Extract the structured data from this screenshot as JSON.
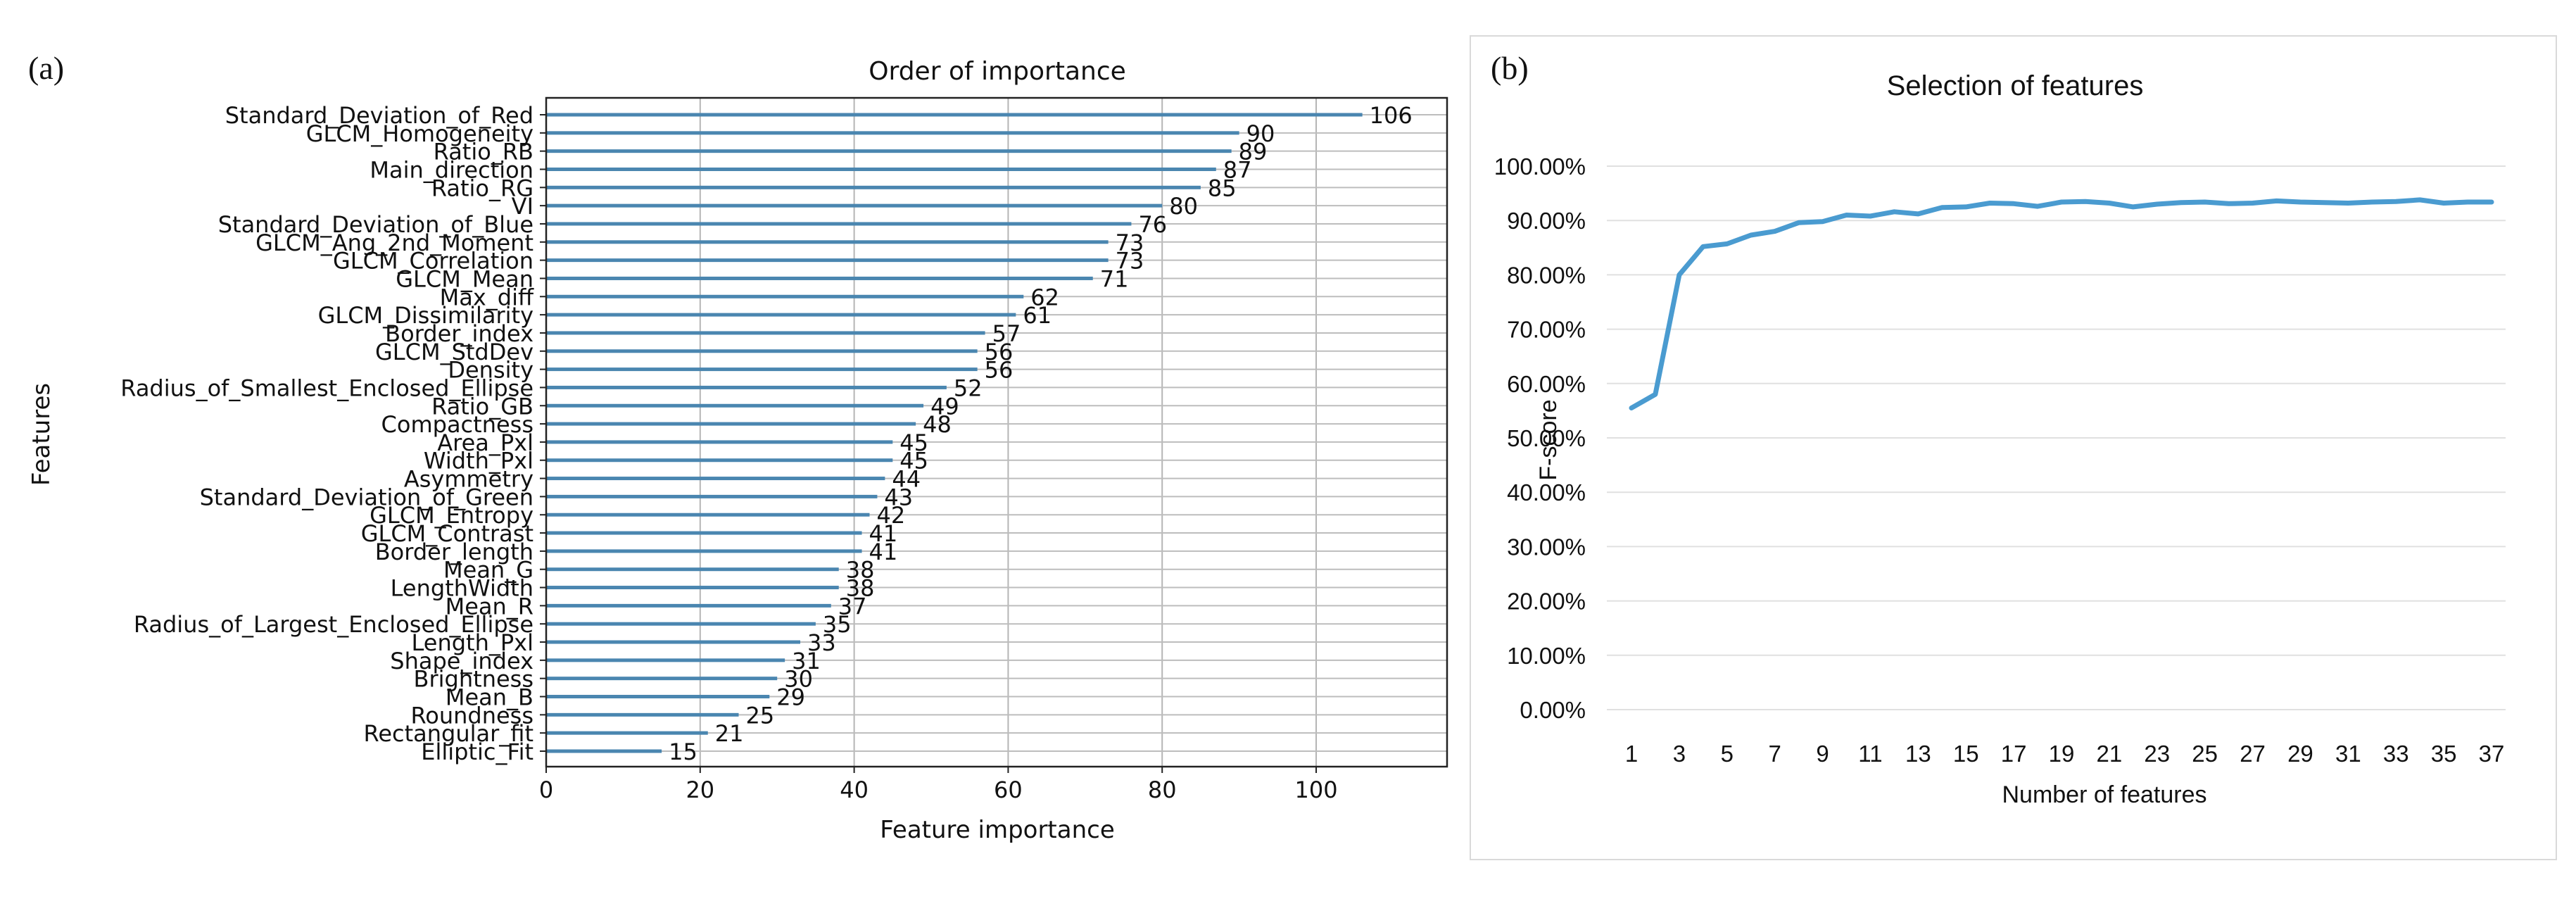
{
  "panels": {
    "a_label": "(a)",
    "b_label": "(b)"
  },
  "chart_data": [
    {
      "type": "bar",
      "orientation": "horizontal",
      "title": "Order of importance",
      "xlabel": "Feature importance",
      "ylabel": "Features",
      "xlim": [
        0,
        117
      ],
      "xticks": [
        0,
        20,
        40,
        60,
        80,
        100
      ],
      "grid": true,
      "bar_color": "#4a86b0",
      "categories": [
        "Standard_Deviation_of_Red",
        "GLCM_Homogeneity",
        "Ratio_RB",
        "Main_direction",
        "Ratio_RG",
        "VI",
        "Standard_Deviation_of_Blue",
        "GLCM_Ang_2nd_Moment",
        "GLCM_Correlation",
        "GLCM_Mean",
        "Max_diff",
        "GLCM_Dissimilarity",
        "Border_index",
        "GLCM_StdDev",
        "Density",
        "Radius_of_Smallest_Enclosed_Ellipse",
        "Ratio_GB",
        "Compactness",
        "Area_Pxl",
        "Width_Pxl",
        "Asymmetry",
        "Standard_Deviation_of_Green",
        "GLCM_Entropy",
        "GLCM_Contrast",
        "Border_length",
        "Mean_G",
        "LengthWidth",
        "Mean_R",
        "Radius_of_Largest_Enclosed_Ellipse",
        "Length_Pxl",
        "Shape_index",
        "Brightness",
        "Mean_B",
        "Roundness",
        "Rectangular_fit",
        "Elliptic_Fit"
      ],
      "values": [
        106,
        90,
        89,
        87,
        85,
        80,
        76,
        73,
        73,
        71,
        62,
        61,
        57,
        56,
        56,
        52,
        49,
        48,
        45,
        45,
        44,
        43,
        42,
        41,
        41,
        38,
        38,
        37,
        35,
        33,
        31,
        30,
        29,
        25,
        21,
        15
      ]
    },
    {
      "type": "line",
      "title": "Selection of features",
      "xlabel": "Number of features",
      "ylabel": "F-score",
      "ylim": [
        0,
        100
      ],
      "yticks": [
        "0.00%",
        "10.00%",
        "20.00%",
        "30.00%",
        "40.00%",
        "50.00%",
        "60.00%",
        "70.00%",
        "80.00%",
        "90.00%",
        "100.00%"
      ],
      "xticks": [
        1,
        3,
        5,
        7,
        9,
        11,
        13,
        15,
        17,
        19,
        21,
        23,
        25,
        27,
        29,
        31,
        33,
        35,
        37
      ],
      "grid": true,
      "line_color": "#4a9bd0",
      "x": [
        1,
        2,
        3,
        4,
        5,
        6,
        7,
        8,
        9,
        10,
        11,
        12,
        13,
        14,
        15,
        16,
        17,
        18,
        19,
        20,
        21,
        22,
        23,
        24,
        25,
        26,
        27,
        28,
        29,
        30,
        31,
        32,
        33,
        34,
        35,
        36,
        37
      ],
      "y": [
        55.5,
        58,
        80,
        85.2,
        85.7,
        87.3,
        88,
        89.6,
        89.8,
        91,
        90.8,
        91.6,
        91.2,
        92.4,
        92.5,
        93.2,
        93.1,
        92.6,
        93.4,
        93.5,
        93.2,
        92.5,
        93,
        93.3,
        93.4,
        93.1,
        93.2,
        93.6,
        93.4,
        93.3,
        93.2,
        93.4,
        93.5,
        93.8,
        93.2,
        93.4,
        93.4
      ]
    }
  ]
}
